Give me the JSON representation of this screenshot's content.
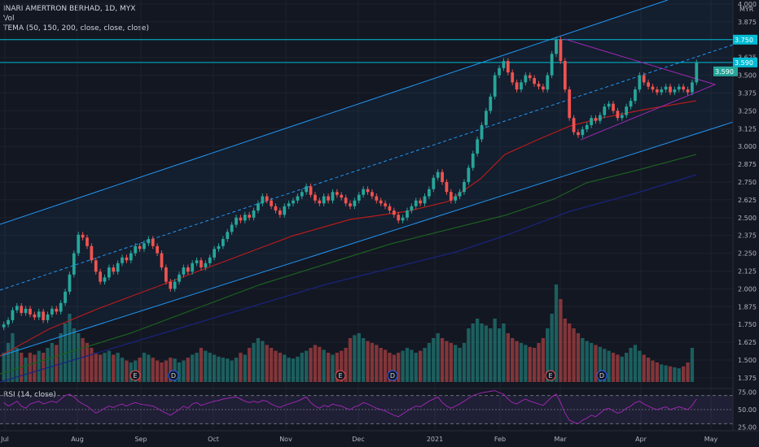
{
  "header": {
    "symbol": "INARI AMERTRON BERHAD, 1D, MYX",
    "vol_label": "Vol",
    "tema_label": "TEMA (50, 150, 200, close, close, close)",
    "rsi_label": "RSI (14, close)"
  },
  "currency": "MYR",
  "price_badges": [
    "3.750",
    "3.590",
    "3.590"
  ],
  "colors": {
    "background": "#131722",
    "up": "#26a69a",
    "down": "#ef5350",
    "channel": "#2196f3",
    "horizontal_levels": "#00bcd4",
    "triangle": "#9c27b0",
    "tema50": "#b71c1c",
    "tema150": "#1b5e20",
    "tema200": "#1a237e",
    "rsi": "#9c27b0"
  },
  "chart_data": {
    "type": "candlestick",
    "title": "INARI AMERTRON BERHAD, 1D, MYX",
    "y_unit": "MYR",
    "ylim": [
      1.3,
      4.0
    ],
    "x_tick_labels": [
      "Jul",
      "Aug",
      "Sep",
      "Oct",
      "Nov",
      "Dec",
      "2021",
      "Feb",
      "Mar",
      "Apr",
      "May"
    ],
    "y_tick_labels": [
      "1.375",
      "1.500",
      "1.625",
      "1.750",
      "1.875",
      "2.000",
      "2.125",
      "2.250",
      "2.375",
      "2.500",
      "2.625",
      "2.750",
      "2.875",
      "3.000",
      "3.125",
      "3.250",
      "3.375",
      "3.500",
      "3.625",
      "3.750",
      "3.875",
      "4.000"
    ],
    "horizontal_levels": [
      3.75,
      3.59
    ],
    "last_close": 3.59,
    "close_series": [
      1.75,
      1.78,
      1.85,
      1.88,
      1.83,
      1.86,
      1.82,
      1.8,
      1.84,
      1.78,
      1.82,
      1.86,
      1.84,
      1.9,
      1.98,
      2.1,
      2.25,
      2.38,
      2.36,
      2.3,
      2.2,
      2.12,
      2.05,
      2.08,
      2.15,
      2.12,
      2.18,
      2.22,
      2.2,
      2.25,
      2.3,
      2.28,
      2.32,
      2.35,
      2.3,
      2.25,
      2.15,
      2.05,
      2.0,
      2.05,
      2.1,
      2.15,
      2.12,
      2.18,
      2.2,
      2.15,
      2.18,
      2.22,
      2.28,
      2.3,
      2.35,
      2.4,
      2.45,
      2.5,
      2.48,
      2.52,
      2.5,
      2.55,
      2.6,
      2.65,
      2.62,
      2.58,
      2.55,
      2.52,
      2.58,
      2.6,
      2.62,
      2.65,
      2.68,
      2.72,
      2.66,
      2.62,
      2.6,
      2.65,
      2.62,
      2.68,
      2.66,
      2.64,
      2.6,
      2.58,
      2.62,
      2.66,
      2.7,
      2.68,
      2.65,
      2.62,
      2.6,
      2.58,
      2.55,
      2.52,
      2.48,
      2.5,
      2.55,
      2.58,
      2.62,
      2.6,
      2.65,
      2.7,
      2.78,
      2.82,
      2.75,
      2.68,
      2.62,
      2.65,
      2.68,
      2.75,
      2.85,
      2.95,
      3.05,
      3.15,
      3.25,
      3.35,
      3.5,
      3.55,
      3.6,
      3.52,
      3.45,
      3.4,
      3.45,
      3.5,
      3.48,
      3.44,
      3.42,
      3.4,
      3.5,
      3.65,
      3.75,
      3.6,
      3.4,
      3.2,
      3.1,
      3.08,
      3.12,
      3.15,
      3.2,
      3.18,
      3.22,
      3.28,
      3.3,
      3.25,
      3.2,
      3.22,
      3.28,
      3.32,
      3.4,
      3.5,
      3.45,
      3.42,
      3.4,
      3.38,
      3.4,
      3.42,
      3.38,
      3.4,
      3.42,
      3.4,
      3.38,
      3.45,
      3.59
    ],
    "volume_series": [
      0.3,
      0.4,
      0.5,
      0.35,
      0.3,
      0.25,
      0.3,
      0.28,
      0.32,
      0.3,
      0.35,
      0.4,
      0.38,
      0.5,
      0.6,
      0.7,
      0.55,
      0.5,
      0.45,
      0.4,
      0.35,
      0.3,
      0.28,
      0.3,
      0.32,
      0.28,
      0.3,
      0.25,
      0.22,
      0.2,
      0.22,
      0.25,
      0.3,
      0.28,
      0.25,
      0.22,
      0.2,
      0.22,
      0.25,
      0.24,
      0.2,
      0.22,
      0.25,
      0.28,
      0.3,
      0.35,
      0.32,
      0.3,
      0.28,
      0.26,
      0.25,
      0.24,
      0.22,
      0.25,
      0.3,
      0.28,
      0.35,
      0.4,
      0.45,
      0.42,
      0.38,
      0.35,
      0.32,
      0.3,
      0.28,
      0.25,
      0.24,
      0.26,
      0.3,
      0.32,
      0.35,
      0.38,
      0.36,
      0.33,
      0.3,
      0.28,
      0.3,
      0.32,
      0.35,
      0.45,
      0.48,
      0.5,
      0.45,
      0.42,
      0.4,
      0.38,
      0.35,
      0.33,
      0.3,
      0.28,
      0.3,
      0.32,
      0.35,
      0.33,
      0.3,
      0.32,
      0.35,
      0.4,
      0.45,
      0.5,
      0.45,
      0.42,
      0.4,
      0.38,
      0.35,
      0.4,
      0.55,
      0.6,
      0.65,
      0.6,
      0.58,
      0.55,
      0.65,
      0.55,
      0.6,
      0.5,
      0.45,
      0.42,
      0.4,
      0.38,
      0.36,
      0.35,
      0.4,
      0.45,
      0.55,
      0.7,
      1.0,
      0.85,
      0.65,
      0.6,
      0.55,
      0.5,
      0.45,
      0.42,
      0.4,
      0.38,
      0.36,
      0.34,
      0.32,
      0.3,
      0.28,
      0.26,
      0.3,
      0.35,
      0.38,
      0.32,
      0.28,
      0.25,
      0.22,
      0.2,
      0.18,
      0.17,
      0.16,
      0.15,
      0.14,
      0.16,
      0.2,
      0.35
    ],
    "rsi_series": [
      60,
      55,
      58,
      62,
      55,
      52,
      58,
      60,
      62,
      58,
      60,
      62,
      60,
      65,
      70,
      72,
      68,
      62,
      58,
      55,
      50,
      45,
      48,
      52,
      55,
      53,
      56,
      58,
      55,
      58,
      60,
      58,
      57,
      56,
      55,
      52,
      48,
      45,
      42,
      46,
      50,
      55,
      52,
      58,
      60,
      56,
      58,
      60,
      62,
      63,
      65,
      66,
      67,
      68,
      65,
      62,
      60,
      62,
      60,
      63,
      62,
      58,
      55,
      53,
      56,
      58,
      60,
      62,
      65,
      68,
      60,
      55,
      52,
      56,
      54,
      58,
      56,
      55,
      52,
      50,
      54,
      56,
      60,
      58,
      55,
      52,
      50,
      48,
      45,
      42,
      40,
      44,
      48,
      52,
      55,
      54,
      58,
      62,
      65,
      68,
      60,
      55,
      52,
      55,
      58,
      62,
      66,
      70,
      72,
      74,
      75,
      76,
      77,
      74,
      72,
      65,
      60,
      58,
      62,
      65,
      62,
      60,
      58,
      56,
      62,
      68,
      72,
      60,
      45,
      35,
      32,
      30,
      35,
      38,
      42,
      40,
      45,
      50,
      52,
      48,
      45,
      47,
      52,
      55,
      60,
      62,
      58,
      55,
      52,
      50,
      52,
      54,
      50,
      52,
      54,
      52,
      50,
      56,
      65
    ],
    "rsi_levels": [
      70,
      50,
      30
    ],
    "rsi_ylim": [
      20,
      80
    ],
    "rsi_tick_labels": [
      "75.00",
      "50.00",
      "25.00"
    ],
    "event_markers": [
      "E",
      "D",
      "E",
      "D",
      "E",
      "D"
    ]
  }
}
